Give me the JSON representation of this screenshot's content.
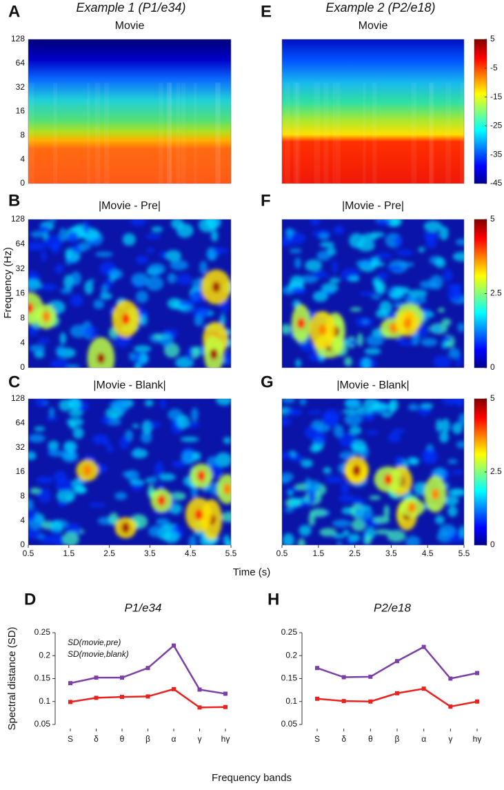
{
  "figure": {
    "column_titles": [
      "Example 1 (P1/e34)",
      "Example 2 (P2/e18)"
    ],
    "ylabel": "Frequency (Hz)",
    "xlabel": "Time (s)",
    "freq_ticks": [
      "0",
      "4",
      "8",
      "16",
      "32",
      "64",
      "128"
    ],
    "xlim": [
      0.5,
      5.5
    ],
    "xticks": [
      0.5,
      1.5,
      2.5,
      3.5,
      4.5,
      5.5
    ],
    "bands_xlabel": "Frequency bands"
  },
  "chart_data": [
    {
      "type": "heatmap",
      "label": "A",
      "title": "Movie",
      "style": "movie"
    },
    {
      "type": "heatmap",
      "label": "B",
      "title": "|Movie - Pre|",
      "style": "diff"
    },
    {
      "type": "heatmap",
      "label": "C",
      "title": "|Movie - Blank|",
      "style": "diff"
    },
    {
      "type": "heatmap",
      "label": "E",
      "title": "Movie",
      "style": "movie",
      "clim": [
        -45,
        5
      ],
      "cticks": [
        5,
        -5,
        -15,
        -25,
        -35,
        -45
      ]
    },
    {
      "type": "heatmap",
      "label": "F",
      "title": "|Movie - Pre|",
      "style": "diff",
      "clim": [
        0,
        5
      ],
      "cticks": [
        0,
        2.5,
        5
      ]
    },
    {
      "type": "heatmap",
      "label": "G",
      "title": "|Movie - Blank|",
      "style": "diff",
      "clim": [
        0,
        5
      ],
      "cticks": [
        0,
        2.5,
        5
      ]
    },
    {
      "type": "line",
      "label": "D",
      "title": "P1/e34",
      "ylabel": "Spectral distance (SD)",
      "legend": true,
      "categories": [
        "S",
        "δ",
        "θ",
        "β",
        "α",
        "γ",
        "hγ"
      ],
      "ylim": [
        0.05,
        0.25
      ],
      "yticks": [
        0.05,
        0.1,
        0.15,
        0.2,
        0.25
      ],
      "series": [
        {
          "name": "SD(movie,pre)",
          "color": "#7b3fa6",
          "values": [
            0.14,
            0.152,
            0.152,
            0.173,
            0.222,
            0.126,
            0.117
          ]
        },
        {
          "name": "SD(movie,blank)",
          "color": "#e8221f",
          "values": [
            0.099,
            0.108,
            0.11,
            0.111,
            0.127,
            0.087,
            0.088
          ]
        }
      ]
    },
    {
      "type": "line",
      "label": "H",
      "title": "P2/e18",
      "legend": false,
      "categories": [
        "S",
        "δ",
        "θ",
        "β",
        "α",
        "γ",
        "hγ"
      ],
      "ylim": [
        0.05,
        0.25
      ],
      "yticks": [
        0.05,
        0.1,
        0.15,
        0.2,
        0.25
      ],
      "series": [
        {
          "name": "SD(movie,pre)",
          "color": "#7b3fa6",
          "values": [
            0.173,
            0.153,
            0.154,
            0.188,
            0.219,
            0.15,
            0.162
          ]
        },
        {
          "name": "SD(movie,blank)",
          "color": "#e8221f",
          "values": [
            0.106,
            0.101,
            0.1,
            0.118,
            0.128,
            0.089,
            0.1
          ]
        }
      ]
    }
  ]
}
